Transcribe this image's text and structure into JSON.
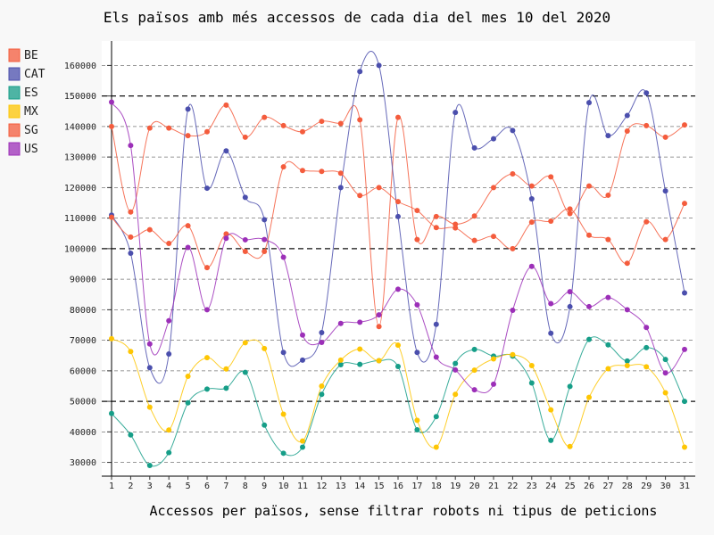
{
  "chart_data": {
    "type": "line",
    "title": "Els països amb més accessos de cada dia del mes 10 del 2020",
    "xlabel": "Accessos per països, sense filtrar robots ni tipus de peticions",
    "ylabel": "",
    "x": [
      1,
      2,
      3,
      4,
      5,
      6,
      7,
      8,
      9,
      10,
      11,
      12,
      13,
      14,
      15,
      16,
      17,
      18,
      19,
      20,
      21,
      22,
      23,
      24,
      25,
      26,
      27,
      28,
      29,
      30,
      31
    ],
    "ylim": [
      25500,
      168000
    ],
    "yticks": [
      30000,
      40000,
      50000,
      60000,
      70000,
      80000,
      90000,
      100000,
      110000,
      120000,
      130000,
      140000,
      150000,
      160000
    ],
    "major_yticks": [
      50000,
      100000,
      150000
    ],
    "grid": true,
    "legend_position": "top-left",
    "series": [
      {
        "name": "BE",
        "color": "#f45c3d",
        "values": [
          140000,
          112000,
          139500,
          139500,
          137000,
          138300,
          147000,
          136500,
          143000,
          140300,
          138300,
          141700,
          141000,
          142200,
          74500,
          143000,
          103000,
          110500,
          108000,
          110700,
          120000,
          124500,
          120500,
          123500,
          111500,
          120500,
          117500,
          138500,
          140300,
          136500,
          140500
        ]
      },
      {
        "name": "CAT",
        "color": "#4b4fad",
        "values": [
          111000,
          98500,
          61000,
          65500,
          145700,
          119800,
          132000,
          116800,
          109500,
          66000,
          63500,
          72500,
          120000,
          158000,
          160000,
          110500,
          66000,
          75200,
          144600,
          133000,
          136000,
          138700,
          116300,
          72300,
          81000,
          147800,
          137000,
          143600,
          151000,
          118900,
          85500
        ]
      },
      {
        "name": "ES",
        "color": "#169e88",
        "values": [
          46000,
          39000,
          29000,
          33200,
          49500,
          54000,
          54300,
          59500,
          42200,
          33000,
          35000,
          52300,
          62000,
          62100,
          63300,
          61400,
          40700,
          45000,
          62400,
          67000,
          64800,
          64800,
          56000,
          37200,
          54900,
          70300,
          68500,
          63200,
          67600,
          63700,
          50000
        ]
      },
      {
        "name": "MX",
        "color": "#fec603",
        "values": [
          70500,
          66300,
          48100,
          40600,
          58200,
          64300,
          60600,
          69200,
          67300,
          45800,
          37000,
          55000,
          63500,
          67100,
          63300,
          68400,
          43800,
          35000,
          52300,
          60200,
          63900,
          65300,
          61700,
          47200,
          35200,
          51300,
          60700,
          61700,
          61300,
          52800,
          35000
        ]
      },
      {
        "name": "SG",
        "color": "#f45c3d",
        "values": [
          110300,
          103800,
          106200,
          101700,
          107500,
          93800,
          104800,
          99100,
          99100,
          126800,
          125600,
          125300,
          124700,
          117400,
          120000,
          115400,
          112500,
          106900,
          106800,
          102700,
          104000,
          100000,
          108700,
          109000,
          113000,
          104400,
          103000,
          95200,
          108800,
          103000,
          114800
        ]
      },
      {
        "name": "US",
        "color": "#9c2fb8",
        "values": [
          148000,
          133800,
          68800,
          76400,
          100400,
          80000,
          103400,
          102900,
          103000,
          97200,
          71700,
          69300,
          75500,
          75900,
          78300,
          86700,
          81600,
          64500,
          60300,
          53800,
          55600,
          79800,
          94200,
          82000,
          85900,
          81000,
          84000,
          80000,
          74200,
          59300,
          67000
        ]
      }
    ]
  }
}
